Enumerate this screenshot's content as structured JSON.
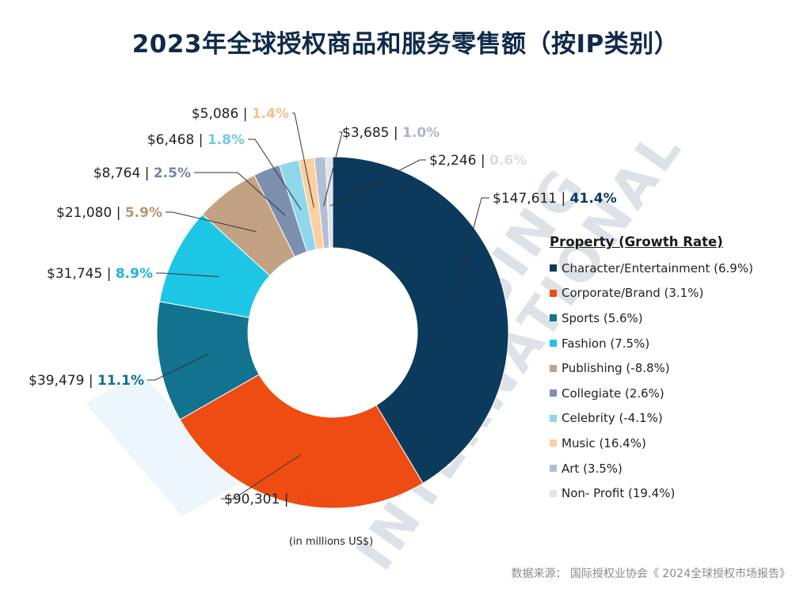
{
  "title": "2023年全球授权商品和服务零售额（按IP类别）",
  "unit_note": "(in millions US$)",
  "source": "数据来源：  国际授权业协会《 2024全球授权市场报告》",
  "watermark": [
    "LICENSING",
    "INTERNATIONAL"
  ],
  "legend_title": "Property (Growth Rate)",
  "chart_data": {
    "type": "pie",
    "donut": true,
    "title": "2023年全球授权商品和服务零售额（按IP类别）",
    "unit": "in millions US$",
    "legend_position": "right",
    "slices": [
      {
        "category": "Character/Entertainment",
        "legend": "Character/Entertainment (6.9%)",
        "growth_rate": 6.9,
        "value": 147611,
        "value_label": "$147,611",
        "share": 41.4,
        "share_label": "41.4%",
        "color": "#0b3a5c",
        "label_color": "#0b3a5c"
      },
      {
        "category": "Corporate/Brand",
        "legend": "Corporate/Brand (3.1%)",
        "growth_rate": 3.1,
        "value": 90301,
        "value_label": "$90,301",
        "share": 25.3,
        "share_label": "25.3%",
        "color": "#ee4c12",
        "label_color": "#e84a10"
      },
      {
        "category": "Sports",
        "legend": "Sports (5.6%)",
        "growth_rate": 5.6,
        "value": 39479,
        "value_label": "$39,479",
        "share": 11.1,
        "share_label": "11.1%",
        "color": "#12728f",
        "label_color": "#12728f"
      },
      {
        "category": "Fashion",
        "legend": "Fashion (7.5%)",
        "growth_rate": 7.5,
        "value": 31745,
        "value_label": "$31,745",
        "share": 8.9,
        "share_label": "8.9%",
        "color": "#1ec6e6",
        "label_color": "#1ab8dc"
      },
      {
        "category": "Publishing",
        "legend": "Publishing (-8.8%)",
        "growth_rate": -8.8,
        "value": 21080,
        "value_label": "$21,080",
        "share": 5.9,
        "share_label": "5.9%",
        "color": "#c2a283",
        "label_color": "#b89670"
      },
      {
        "category": "Collegiate",
        "legend": "Collegiate (2.6%)",
        "growth_rate": 2.6,
        "value": 8764,
        "value_label": "$8,764",
        "share": 2.5,
        "share_label": "2.5%",
        "color": "#7c8fae",
        "label_color": "#7287a6"
      },
      {
        "category": "Celebrity",
        "legend": "Celebrity (-4.1%)",
        "growth_rate": -4.1,
        "value": 6468,
        "value_label": "$6,468",
        "share": 1.8,
        "share_label": "1.8%",
        "color": "#8ed8ea",
        "label_color": "#6fcbe0"
      },
      {
        "category": "Music",
        "legend": "Music (16.4%)",
        "growth_rate": 16.4,
        "value": 5086,
        "value_label": "$5,086",
        "share": 1.4,
        "share_label": "1.4%",
        "color": "#fbcfa2",
        "label_color": "#f3bf8c"
      },
      {
        "category": "Art",
        "legend": "Art (3.5%)",
        "growth_rate": 3.5,
        "value": 3685,
        "value_label": "$3,685",
        "share": 1.0,
        "share_label": "1.0%",
        "color": "#b2bfd3",
        "label_color": "#a9b6cc"
      },
      {
        "category": "Non- Profit",
        "legend": "Non- Profit (19.4%)",
        "growth_rate": 19.4,
        "value": 2246,
        "value_label": "$2,246",
        "share": 0.6,
        "share_label": "0.6%",
        "color": "#dfe3ec",
        "label_color": "#d6dbe6"
      }
    ]
  }
}
